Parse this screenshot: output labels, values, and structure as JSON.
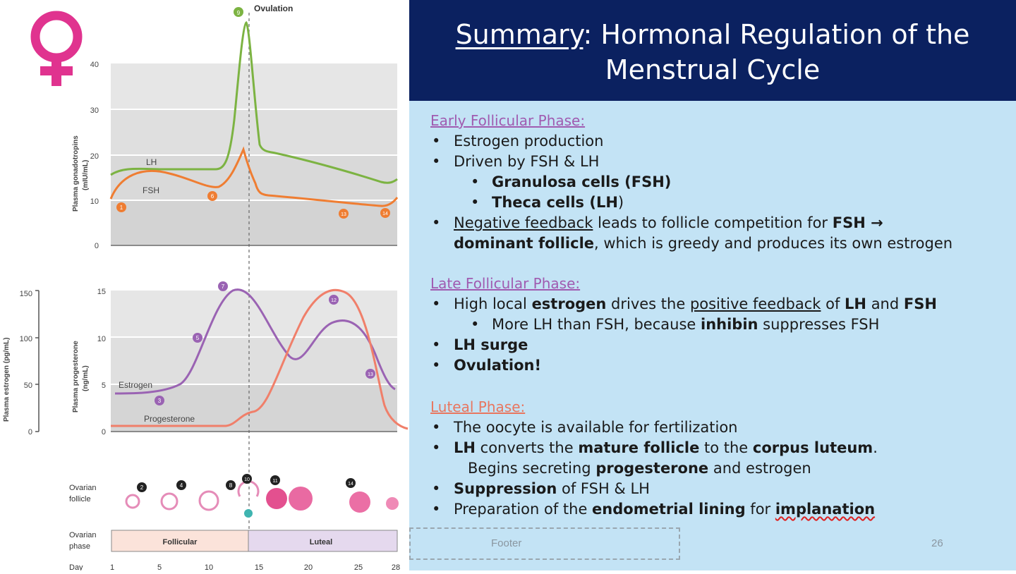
{
  "slide": {
    "title_underlined": "Summary",
    "title_rest": ": Hormonal Regulation of the Menstrual Cycle",
    "footer": "Footer",
    "page_number": "26",
    "accent_purple": "#a05bb0",
    "accent_orange": "#e8765f",
    "title_bg": "#0b2160",
    "panel_bg": "#c3e3f5"
  },
  "sections": {
    "early": {
      "heading": "Early Follicular Phase:",
      "b1": "Estrogen production",
      "b2": "Driven by FSH & LH",
      "s1": "Granulosa cells (FSH)",
      "s2a": "Theca cells (LH",
      "s2b": ")",
      "b3_ul": "Negative feedback",
      "b3_a": " leads to follicle competition for ",
      "b3_b": "FSH →",
      "b3c_bold": "dominant follicle",
      "b3c_rest": ", which is greedy and produces its own estrogen"
    },
    "late": {
      "heading": "Late Follicular Phase:",
      "b1_a": "High local ",
      "b1_b": "estrogen",
      "b1_c": " drives the ",
      "b1_d": "positive feedback",
      "b1_e": " of ",
      "b1_f": "LH",
      "b1_g": " and ",
      "b1_h": "FSH",
      "s1_a": "More LH than FSH, because ",
      "s1_b": "inhibin",
      "s1_c": " suppresses FSH",
      "b2": "LH surge",
      "b3": "Ovulation!"
    },
    "luteal": {
      "heading": "Luteal Phase:",
      "b1": "The oocyte is available for fertilization",
      "b2_a": "LH",
      "b2_b": " converts the ",
      "b2_c": "mature follicle",
      "b2_d": " to the ",
      "b2_e": "corpus luteum",
      "b2_f": ".",
      "b2c_a": "Begins secreting ",
      "b2c_b": "progesterone",
      "b2c_c": " and estrogen",
      "b3_a": "Suppression",
      "b3_b": " of FSH & LH",
      "b4_a": "Preparation of the ",
      "b4_b": "endometrial lining",
      "b4_c": " for ",
      "b4_d": "implanation"
    }
  },
  "figure": {
    "ovulation_label": "Ovulation",
    "top_ylabel_1": "Plasma gonadotropins",
    "top_ylabel_2": "(mIU/mL)",
    "top_ticks": [
      "40",
      "30",
      "20",
      "10",
      "0"
    ],
    "lh_label": "LH",
    "fsh_label": "FSH",
    "estrogen_ylabel_1": "Plasma estrogen (pg/mL)",
    "estrogen_ticks": [
      "150",
      "100",
      "50",
      "0"
    ],
    "prog_ylabel_1": "Plasma progesterone",
    "prog_ylabel_2": "(ng/mL)",
    "prog_ticks": [
      "15",
      "10",
      "5",
      "0"
    ],
    "estrogen_label": "Estrogen",
    "progesterone_label": "Progesterone",
    "follicle_label_1": "Ovarian",
    "follicle_label_2": "follicle",
    "phase_label_1": "Ovarian",
    "phase_label_2": "phase",
    "follicular_label": "Follicular",
    "luteal_label": "Luteal",
    "day_label": "Day",
    "day_ticks": [
      "1",
      "5",
      "10",
      "15",
      "20",
      "25",
      "28"
    ],
    "markers": [
      "1",
      "6",
      "13",
      "14",
      "7",
      "5",
      "3",
      "12",
      "13",
      "2",
      "4",
      "8",
      "10",
      "11",
      "14",
      "9"
    ],
    "lh_color": "#7cb342",
    "fsh_color": "#ef7d32",
    "estrogen_color": "#9a63b3",
    "progesterone_color": "#f07f6a"
  }
}
